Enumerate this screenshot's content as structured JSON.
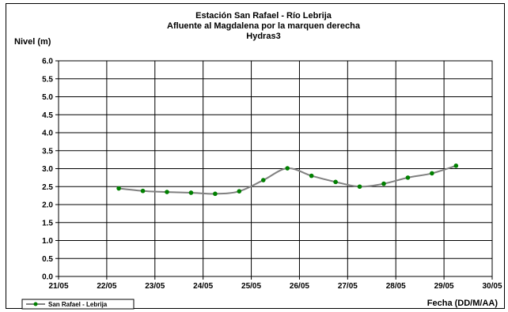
{
  "chart_data": {
    "type": "line",
    "title_lines": [
      "Estación San Rafael - Río Lebrija",
      "Afluente al Magdalena por la marquen derecha",
      "Hydras3"
    ],
    "ylabel": "Nivel (m)",
    "xlabel": "Fecha (DD/M/AA)",
    "x_tick_labels": [
      "21/05",
      "22/05",
      "23/05",
      "24/05",
      "25/05",
      "26/05",
      "27/05",
      "28/05",
      "29/05",
      "30/05"
    ],
    "xlim": [
      0,
      9
    ],
    "y_tick_labels": [
      "0.0",
      "0.5",
      "1.0",
      "1.5",
      "2.0",
      "2.5",
      "3.0",
      "3.5",
      "4.0",
      "4.5",
      "5.0",
      "5.5",
      "6.0"
    ],
    "ylim": [
      0,
      6
    ],
    "y_tick_step": 0.5,
    "grid": true,
    "legend_position": "bottom-left",
    "series": [
      {
        "name": "San Rafael - Lebrija",
        "line_color": "#808080",
        "marker_color": "#008000",
        "x": [
          1.25,
          1.75,
          2.25,
          2.75,
          3.25,
          3.75,
          4.25,
          4.75,
          5.25,
          5.75,
          6.25,
          6.75,
          7.25,
          7.75,
          8.25
        ],
        "y": [
          2.45,
          2.38,
          2.35,
          2.33,
          2.3,
          2.37,
          2.68,
          3.01,
          2.8,
          2.63,
          2.5,
          2.58,
          2.75,
          2.87,
          3.08
        ]
      }
    ]
  }
}
